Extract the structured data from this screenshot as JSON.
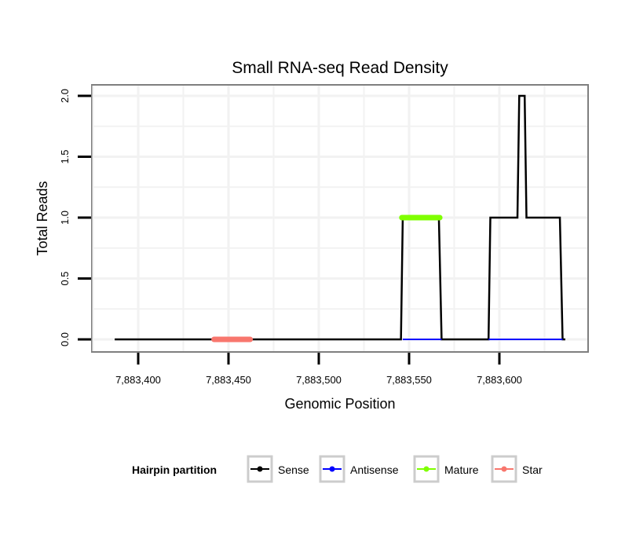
{
  "chart_data": {
    "type": "line",
    "title": "Small RNA-seq Read Density",
    "xlabel": "Genomic Position",
    "ylabel": "Total Reads",
    "xlim": [
      7883374,
      7883649
    ],
    "ylim": [
      -0.1,
      2.1
    ],
    "x_ticks": [
      7883400,
      7883450,
      7883500,
      7883550,
      7883600
    ],
    "x_tick_labels": [
      "7,883,400",
      "7,883,450",
      "7,883,500",
      "7,883,550",
      "7,883,600"
    ],
    "y_ticks": [
      0,
      0.5,
      1,
      1.5,
      2
    ],
    "y_tick_labels": [
      "0.0",
      "0.5",
      "1.0",
      "1.5",
      "2.0"
    ],
    "grid": true,
    "legend": {
      "title": "Hairpin partition",
      "placement": "bottom",
      "entries": [
        "Sense",
        "Antisense",
        "Mature",
        "Star"
      ]
    },
    "colors": {
      "Sense": "#000000",
      "Antisense": "#0000ff",
      "Mature": "#7fff00",
      "Star": "#f8766d"
    },
    "series": [
      {
        "name": "Sense",
        "width": 2.5,
        "points": [
          [
            7883387,
            0
          ],
          [
            7883545.5,
            0
          ],
          [
            7883546.5,
            1
          ],
          [
            7883566.5,
            1
          ],
          [
            7883568,
            0
          ],
          [
            7883594,
            0
          ],
          [
            7883595,
            1
          ],
          [
            7883610,
            1
          ],
          [
            7883611,
            2
          ],
          [
            7883614,
            2
          ],
          [
            7883615,
            1
          ],
          [
            7883633.5,
            1
          ],
          [
            7883635,
            0
          ],
          [
            7883636.5,
            0
          ]
        ]
      },
      {
        "name": "Antisense",
        "width": 2,
        "points": [
          [
            7883546.5,
            0
          ],
          [
            7883568,
            0
          ]
        ]
      },
      {
        "name": "Antisense",
        "width": 2,
        "points": [
          [
            7883594,
            0
          ],
          [
            7883635,
            0
          ]
        ]
      },
      {
        "name": "Mature",
        "width": 7,
        "points": [
          [
            7883546,
            1
          ],
          [
            7883567,
            1
          ]
        ]
      },
      {
        "name": "Star",
        "width": 7,
        "points": [
          [
            7883442,
            0
          ],
          [
            7883462,
            0
          ]
        ]
      }
    ]
  }
}
